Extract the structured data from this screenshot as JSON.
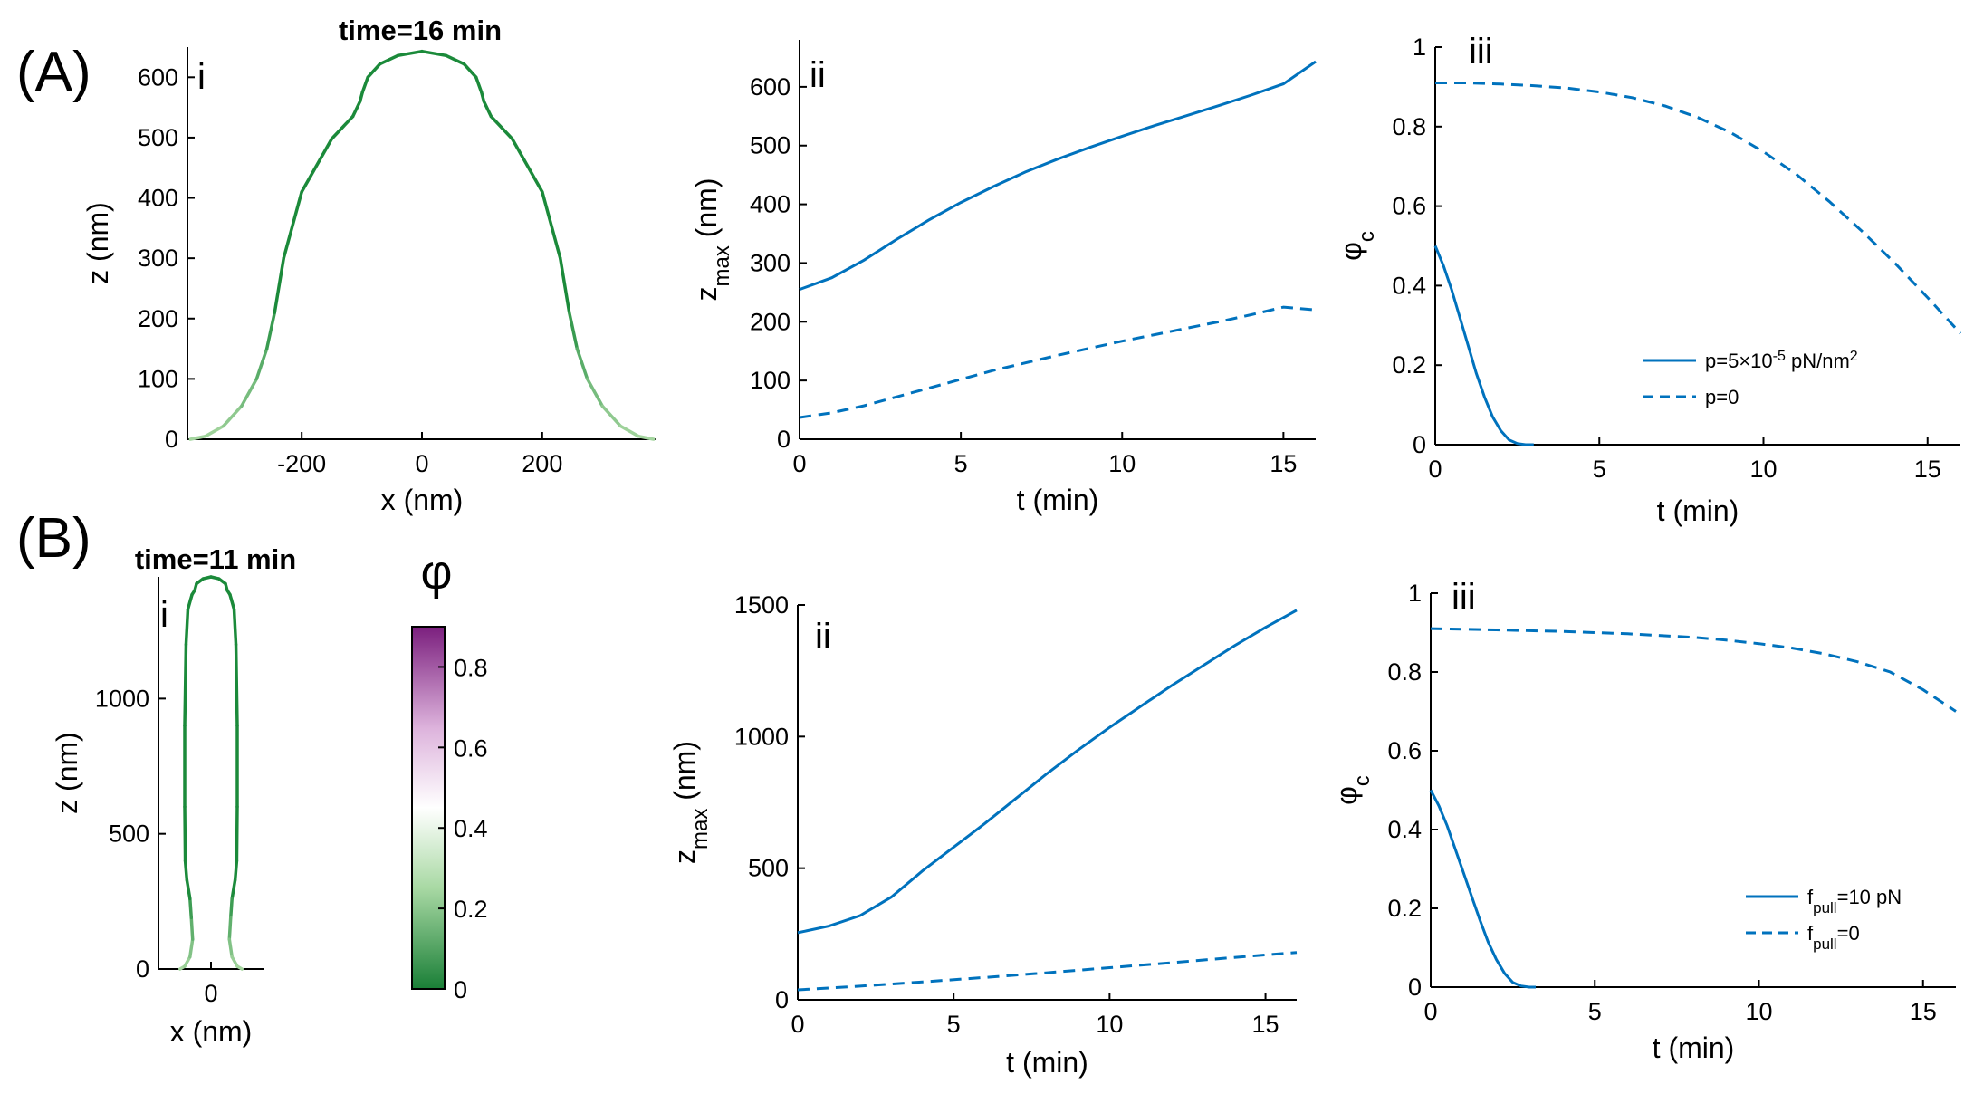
{
  "colors": {
    "series": "#0072BD",
    "membrane_dark": "#1b8a3a",
    "membrane_light": "#a6d6a0",
    "cbar_top": "#7b1f7e",
    "cbar_mid": "#ffffff",
    "cbar_bottom": "#1a7f37"
  },
  "panels": {
    "A": "(A)",
    "B": "(B)"
  },
  "chart_data": [
    {
      "id": "A-i",
      "type": "line",
      "roman": "i",
      "title": "time=16 min",
      "xlabel": "x (nm)",
      "ylabel": "z (nm)",
      "xlim": [
        -390,
        390
      ],
      "ylim": [
        0,
        650
      ],
      "xticks": [
        -200,
        0,
        200
      ],
      "yticks": [
        0,
        100,
        200,
        300,
        400,
        500,
        600
      ],
      "profile_x": [
        0,
        40,
        70,
        90,
        99,
        103,
        115,
        150,
        200,
        230,
        245,
        258,
        275,
        300,
        330,
        360,
        385
      ],
      "profile_z": [
        643,
        636,
        622,
        600,
        575,
        560,
        535,
        498,
        410,
        300,
        210,
        150,
        100,
        55,
        22,
        5,
        0
      ]
    },
    {
      "id": "A-ii",
      "type": "line",
      "roman": "ii",
      "xlabel": "t (min)",
      "ylabel": "z",
      "ylabel_sub": "max",
      "ylabel_unit": " (nm)",
      "xlim": [
        0,
        16
      ],
      "ylim": [
        0,
        680
      ],
      "xticks": [
        0,
        5,
        10,
        15
      ],
      "yticks": [
        0,
        100,
        200,
        300,
        400,
        500,
        600
      ],
      "series": [
        {
          "name": "solid",
          "style": "solid",
          "x": [
            0,
            1,
            2,
            3,
            4,
            5,
            6,
            7,
            8,
            9,
            10,
            11,
            12,
            13,
            14,
            15,
            16
          ],
          "y": [
            255,
            275,
            305,
            340,
            373,
            403,
            430,
            455,
            477,
            497,
            516,
            534,
            551,
            568,
            586,
            605,
            643
          ]
        },
        {
          "name": "dashed",
          "style": "dashed",
          "x": [
            0,
            1,
            2,
            3,
            4,
            5,
            6,
            7,
            8,
            9,
            10,
            11,
            12,
            13,
            14,
            15,
            16
          ],
          "y": [
            37,
            45,
            57,
            72,
            87,
            102,
            117,
            130,
            143,
            155,
            167,
            178,
            189,
            200,
            212,
            225,
            220
          ]
        }
      ]
    },
    {
      "id": "A-iii",
      "type": "line",
      "roman": "iii",
      "xlabel": "t (min)",
      "ylabel": "φ",
      "ylabel_sub": "c",
      "xlim": [
        0,
        16
      ],
      "ylim": [
        0,
        1
      ],
      "xticks": [
        0,
        5,
        10,
        15
      ],
      "yticks": [
        0,
        0.2,
        0.4,
        0.6,
        0.8,
        1
      ],
      "ytick_labels": [
        "0",
        "0.2",
        "0.4",
        "0.6",
        "0.8",
        "1"
      ],
      "legend": {
        "location": "lower-right",
        "entries": [
          {
            "style": "solid",
            "label": "p=5×10",
            "sup": "-5",
            "label_end": " pN/nm",
            "sup2": "2"
          },
          {
            "style": "dashed",
            "label": "p=0"
          }
        ]
      },
      "series": [
        {
          "name": "p=5×10^-5 pN/nm^2",
          "style": "solid",
          "x": [
            0,
            0.25,
            0.5,
            0.75,
            1,
            1.25,
            1.5,
            1.75,
            2,
            2.25,
            2.5,
            2.75,
            3
          ],
          "y": [
            0.5,
            0.45,
            0.39,
            0.32,
            0.25,
            0.18,
            0.12,
            0.07,
            0.035,
            0.012,
            0.003,
            0,
            0
          ]
        },
        {
          "name": "p=0",
          "style": "dashed",
          "x": [
            0,
            1,
            2,
            3,
            4,
            5,
            6,
            7,
            8,
            9,
            10,
            11,
            12,
            13,
            14,
            15,
            16
          ],
          "y": [
            0.91,
            0.91,
            0.907,
            0.903,
            0.897,
            0.887,
            0.873,
            0.852,
            0.823,
            0.785,
            0.737,
            0.68,
            0.612,
            0.537,
            0.457,
            0.37,
            0.28
          ]
        }
      ]
    },
    {
      "id": "B-i",
      "type": "line",
      "roman": "i",
      "title": "time=11 min",
      "xlabel": "x (nm)",
      "ylabel": "z (nm)",
      "xlim": [
        -200,
        200
      ],
      "ylim": [
        0,
        1450
      ],
      "xticks": [
        0
      ],
      "yticks": [
        0,
        500,
        1000
      ],
      "profile_x": [
        0,
        30,
        55,
        62,
        72,
        78,
        88,
        95,
        100,
        100,
        98,
        92,
        80,
        75,
        70,
        80,
        100,
        118
      ],
      "profile_z": [
        1450,
        1443,
        1425,
        1400,
        1385,
        1365,
        1330,
        1200,
        900,
        600,
        400,
        330,
        260,
        190,
        110,
        45,
        10,
        0
      ]
    },
    {
      "id": "B-ii",
      "type": "line",
      "roman": "ii",
      "xlabel": "t (min)",
      "ylabel": "z",
      "ylabel_sub": "max",
      "ylabel_unit": " (nm)",
      "xlim": [
        0,
        16
      ],
      "ylim": [
        0,
        1500
      ],
      "xticks": [
        0,
        5,
        10,
        15
      ],
      "yticks": [
        0,
        500,
        1000,
        1500
      ],
      "series": [
        {
          "name": "solid",
          "style": "solid",
          "x": [
            0,
            1,
            2,
            3,
            4,
            5,
            6,
            7,
            8,
            9,
            10,
            11,
            12,
            13,
            14,
            15,
            16
          ],
          "y": [
            255,
            280,
            320,
            390,
            490,
            580,
            670,
            765,
            860,
            950,
            1035,
            1115,
            1195,
            1270,
            1345,
            1415,
            1480
          ]
        },
        {
          "name": "dashed",
          "style": "dashed",
          "x": [
            0,
            2,
            4,
            6,
            8,
            10,
            12,
            14,
            16
          ],
          "y": [
            38,
            52,
            68,
            85,
            103,
            122,
            141,
            161,
            180
          ]
        }
      ]
    },
    {
      "id": "B-iii",
      "type": "line",
      "roman": "iii",
      "xlabel": "t (min)",
      "ylabel": "φ",
      "ylabel_sub": "c",
      "xlim": [
        0,
        16
      ],
      "ylim": [
        0,
        1
      ],
      "xticks": [
        0,
        5,
        10,
        15
      ],
      "yticks": [
        0,
        0.2,
        0.4,
        0.6,
        0.8,
        1
      ],
      "ytick_labels": [
        "0",
        "0.2",
        "0.4",
        "0.6",
        "0.8",
        "1"
      ],
      "legend": {
        "location": "lower-right",
        "entries": [
          {
            "style": "solid",
            "label": "f",
            "sub": "pull",
            "label_end": "=10 pN"
          },
          {
            "style": "dashed",
            "label": "f",
            "sub": "pull",
            "label_end": "=0"
          }
        ]
      },
      "series": [
        {
          "name": "f_pull=10 pN",
          "style": "solid",
          "x": [
            0,
            0.25,
            0.5,
            0.75,
            1,
            1.25,
            1.5,
            1.75,
            2,
            2.25,
            2.5,
            2.75,
            3,
            3.2
          ],
          "y": [
            0.5,
            0.46,
            0.41,
            0.35,
            0.29,
            0.23,
            0.17,
            0.115,
            0.07,
            0.035,
            0.012,
            0.003,
            0,
            0
          ]
        },
        {
          "name": "f_pull=0",
          "style": "dashed",
          "x": [
            0,
            2,
            4,
            6,
            8,
            9,
            10,
            11,
            12,
            13,
            14,
            15,
            16
          ],
          "y": [
            0.91,
            0.907,
            0.903,
            0.897,
            0.888,
            0.881,
            0.872,
            0.861,
            0.846,
            0.826,
            0.8,
            0.755,
            0.7
          ]
        }
      ]
    }
  ],
  "colorbar": {
    "symbol": "φ",
    "range": [
      0,
      0.9
    ],
    "ticks": [
      0,
      0.2,
      0.4,
      0.6,
      0.8
    ],
    "tick_labels": [
      "0",
      "0.2",
      "0.4",
      "0.6",
      "0.8"
    ]
  }
}
